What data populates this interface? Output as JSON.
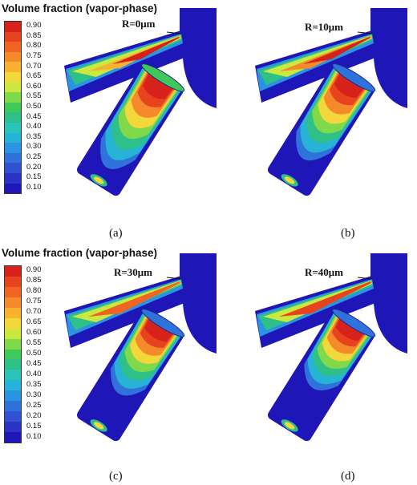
{
  "legend": {
    "title": "Volume fraction (vapor-phase)",
    "levels": [
      "0.90",
      "0.85",
      "0.80",
      "0.75",
      "0.70",
      "0.65",
      "0.60",
      "0.55",
      "0.50",
      "0.45",
      "0.40",
      "0.35",
      "0.30",
      "0.25",
      "0.20",
      "0.15",
      "0.10"
    ],
    "colors": [
      "#d6221a",
      "#e8431f",
      "#f06424",
      "#f58a2a",
      "#f7b22f",
      "#f2d83a",
      "#c9e840",
      "#7fd94b",
      "#3fc95a",
      "#2fc08a",
      "#2bc4b8",
      "#27b3d6",
      "#2a93e2",
      "#2f72dc",
      "#3052d0",
      "#2a33c4",
      "#1f16b8"
    ]
  },
  "panels": [
    {
      "radius_label": "R=0μm",
      "caption": "(a)"
    },
    {
      "radius_label": "R=10μm",
      "caption": "(b)"
    },
    {
      "radius_label": "R=30μm",
      "caption": "(c)"
    },
    {
      "radius_label": "R=40μm",
      "caption": "(d)"
    }
  ]
}
